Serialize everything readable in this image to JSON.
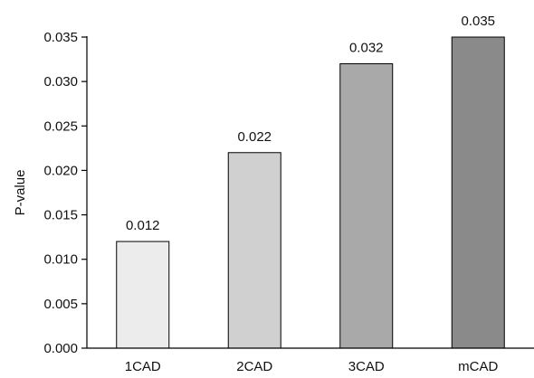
{
  "chart_data": {
    "type": "bar",
    "categories": [
      "1CAD",
      "2CAD",
      "3CAD",
      "mCAD"
    ],
    "values": [
      0.012,
      0.022,
      0.032,
      0.035
    ],
    "data_labels": [
      "0.012",
      "0.022",
      "0.032",
      "0.035"
    ],
    "bar_colors": [
      "#ececec",
      "#d0d0d0",
      "#a9a9a9",
      "#8a8a8a"
    ],
    "ylabel": "P-value",
    "xlabel": "",
    "ylim": [
      0,
      0.035
    ],
    "yticks": [
      0.0,
      0.005,
      0.01,
      0.015,
      0.02,
      0.025,
      0.03,
      0.035
    ],
    "ytick_labels": [
      "0.000",
      "0.005",
      "0.010",
      "0.015",
      "0.020",
      "0.025",
      "0.030",
      "0.035"
    ],
    "grid": false,
    "legend": "none"
  }
}
